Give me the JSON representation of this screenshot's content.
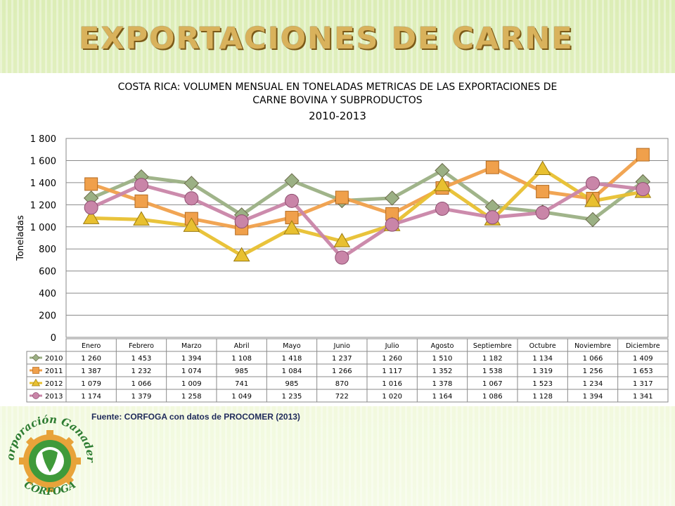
{
  "slide": {
    "title": "EXPORTACIONES DE CARNE",
    "source": "Fuente: CORFOGA con datos de PROCOMER (2013)"
  },
  "logo": {
    "top_text": "Corporación Ganadera",
    "bottom_text": "CORFOGA"
  },
  "colors": {
    "2010": "#9bb084",
    "2011": "#f0a04b",
    "2012": "#e8c030",
    "2013": "#c985a8",
    "title": "#d9b25c"
  },
  "chart_data": {
    "type": "line",
    "title": "COSTA RICA: VOLUMEN MENSUAL EN TONELADAS METRICAS DE LAS EXPORTACIONES DE",
    "title_line2": "CARNE BOVINA Y SUBPRODUCTOS",
    "subtitle": "2010-2013",
    "ylabel": "Toneladas",
    "xlabel": "",
    "ylim": [
      0,
      1800
    ],
    "y_ticks": [
      "0",
      "200",
      "400",
      "600",
      "800",
      "1 000",
      "1 200",
      "1 400",
      "1 600",
      "1 800"
    ],
    "grid": true,
    "legend": "data-table",
    "categories": [
      "Enero",
      "Febrero",
      "Marzo",
      "Abril",
      "Mayo",
      "Junio",
      "Julio",
      "Agosto",
      "Septiembre",
      "Octubre",
      "Noviembre",
      "Diciembre"
    ],
    "series": [
      {
        "name": "2010",
        "marker": "diamond",
        "values": [
          1260,
          1453,
          1394,
          1108,
          1418,
          1237,
          1260,
          1510,
          1182,
          1134,
          1066,
          1409
        ],
        "labels": [
          "1 260",
          "1 453",
          "1 394",
          "1 108",
          "1 418",
          "1 237",
          "1 260",
          "1 510",
          "1 182",
          "1 134",
          "1 066",
          "1 409"
        ]
      },
      {
        "name": "2011",
        "marker": "square",
        "values": [
          1387,
          1232,
          1074,
          985,
          1084,
          1266,
          1117,
          1352,
          1538,
          1319,
          1256,
          1653
        ],
        "labels": [
          "1 387",
          "1 232",
          "1 074",
          "985",
          "1 084",
          "1 266",
          "1 117",
          "1 352",
          "1 538",
          "1 319",
          "1 256",
          "1 653"
        ]
      },
      {
        "name": "2012",
        "marker": "triangle",
        "values": [
          1079,
          1066,
          1009,
          741,
          985,
          870,
          1016,
          1378,
          1067,
          1523,
          1234,
          1317
        ],
        "labels": [
          "1 079",
          "1 066",
          "1 009",
          "741",
          "985",
          "870",
          "1 016",
          "1 378",
          "1 067",
          "1 523",
          "1 234",
          "1 317"
        ]
      },
      {
        "name": "2013",
        "marker": "circle",
        "values": [
          1174,
          1379,
          1258,
          1049,
          1235,
          722,
          1020,
          1164,
          1086,
          1128,
          1394,
          1341
        ],
        "labels": [
          "1 174",
          "1 379",
          "1 258",
          "1 049",
          "1 235",
          "722",
          "1 020",
          "1 164",
          "1 086",
          "1 128",
          "1 394",
          "1 341"
        ]
      }
    ]
  }
}
